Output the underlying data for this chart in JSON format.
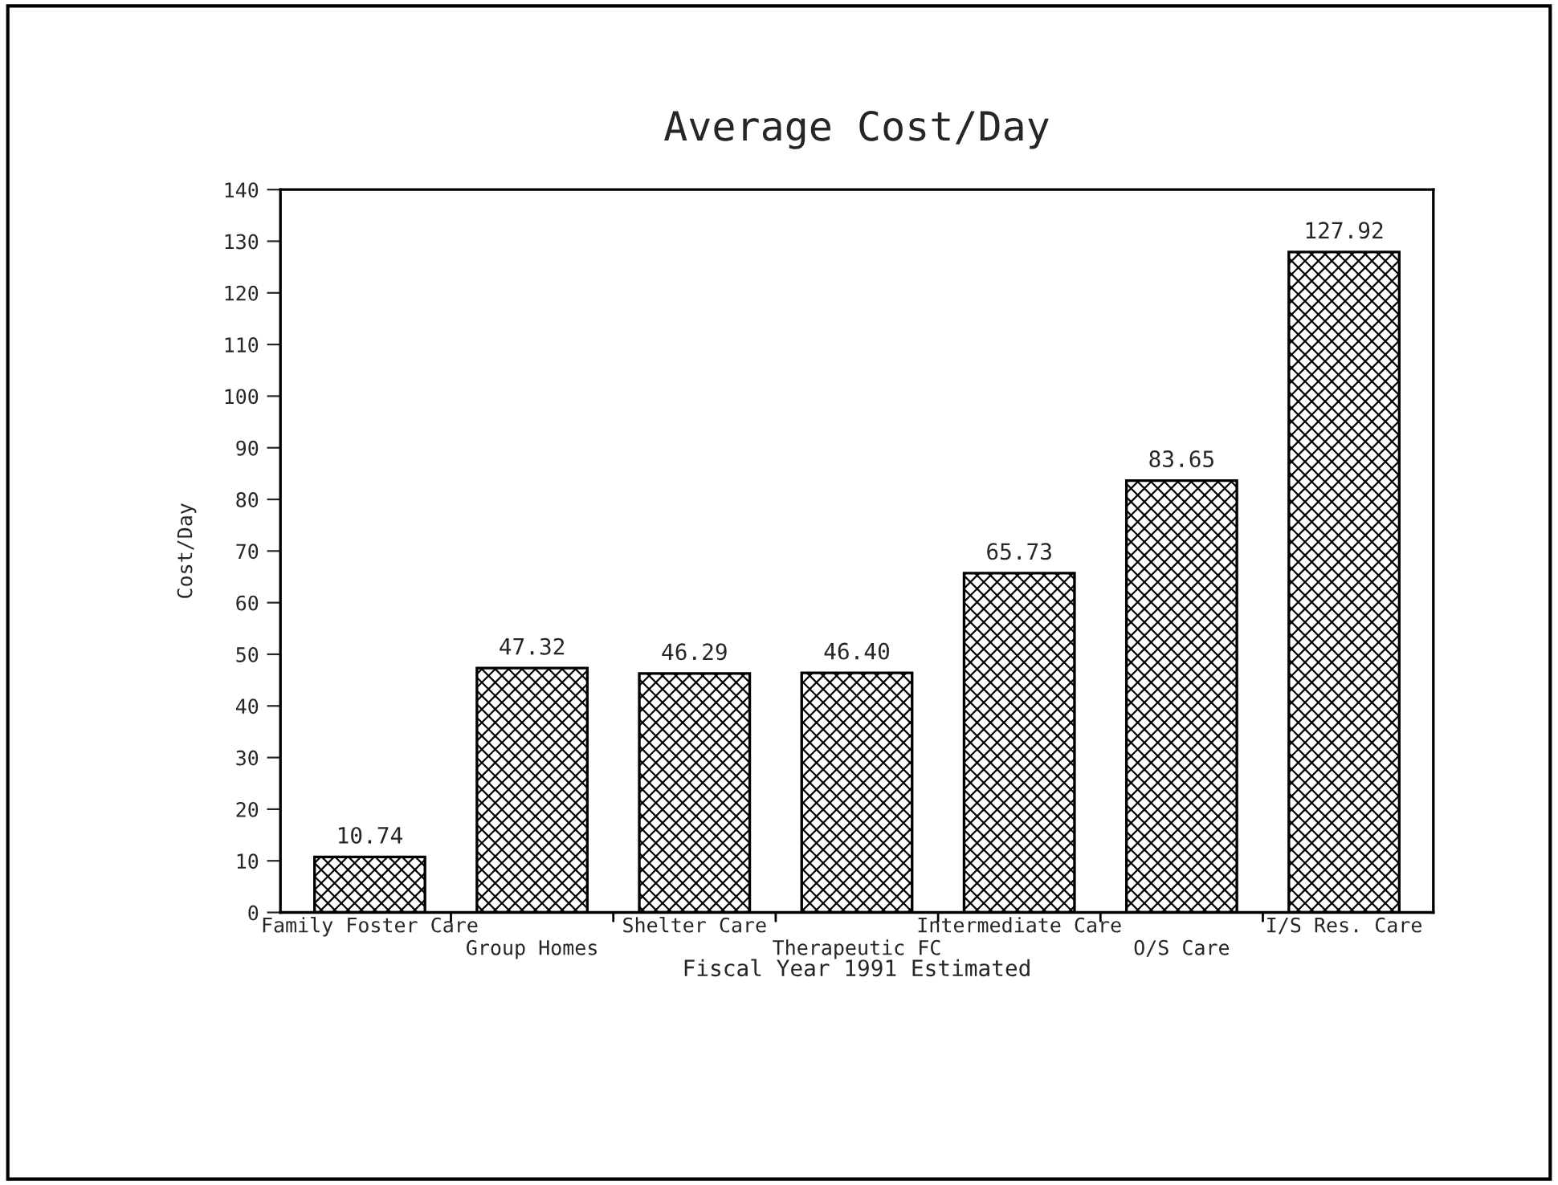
{
  "chart_data": {
    "type": "bar",
    "title": "Average Cost/Day",
    "xlabel": "Fiscal Year 1991 Estimated",
    "ylabel": "Cost/Day",
    "categories": [
      "Family Foster Care",
      "Group Homes",
      "Shelter Care",
      "Therapeutic FC",
      "Intermediate Care",
      "O/S Care",
      "I/S Res. Care"
    ],
    "values": [
      10.74,
      47.32,
      46.29,
      46.4,
      65.73,
      83.65,
      127.92
    ],
    "color": "#000000",
    "ylim": [
      0,
      140
    ],
    "yticks": [
      0,
      10,
      20,
      30,
      40,
      50,
      60,
      70,
      80,
      90,
      100,
      110,
      120,
      130,
      140
    ],
    "value_labels": [
      "10.74",
      "47.32",
      "46.29",
      "46.40",
      "65.73",
      "83.65",
      "127.92"
    ],
    "grid": false,
    "legend": false
  }
}
